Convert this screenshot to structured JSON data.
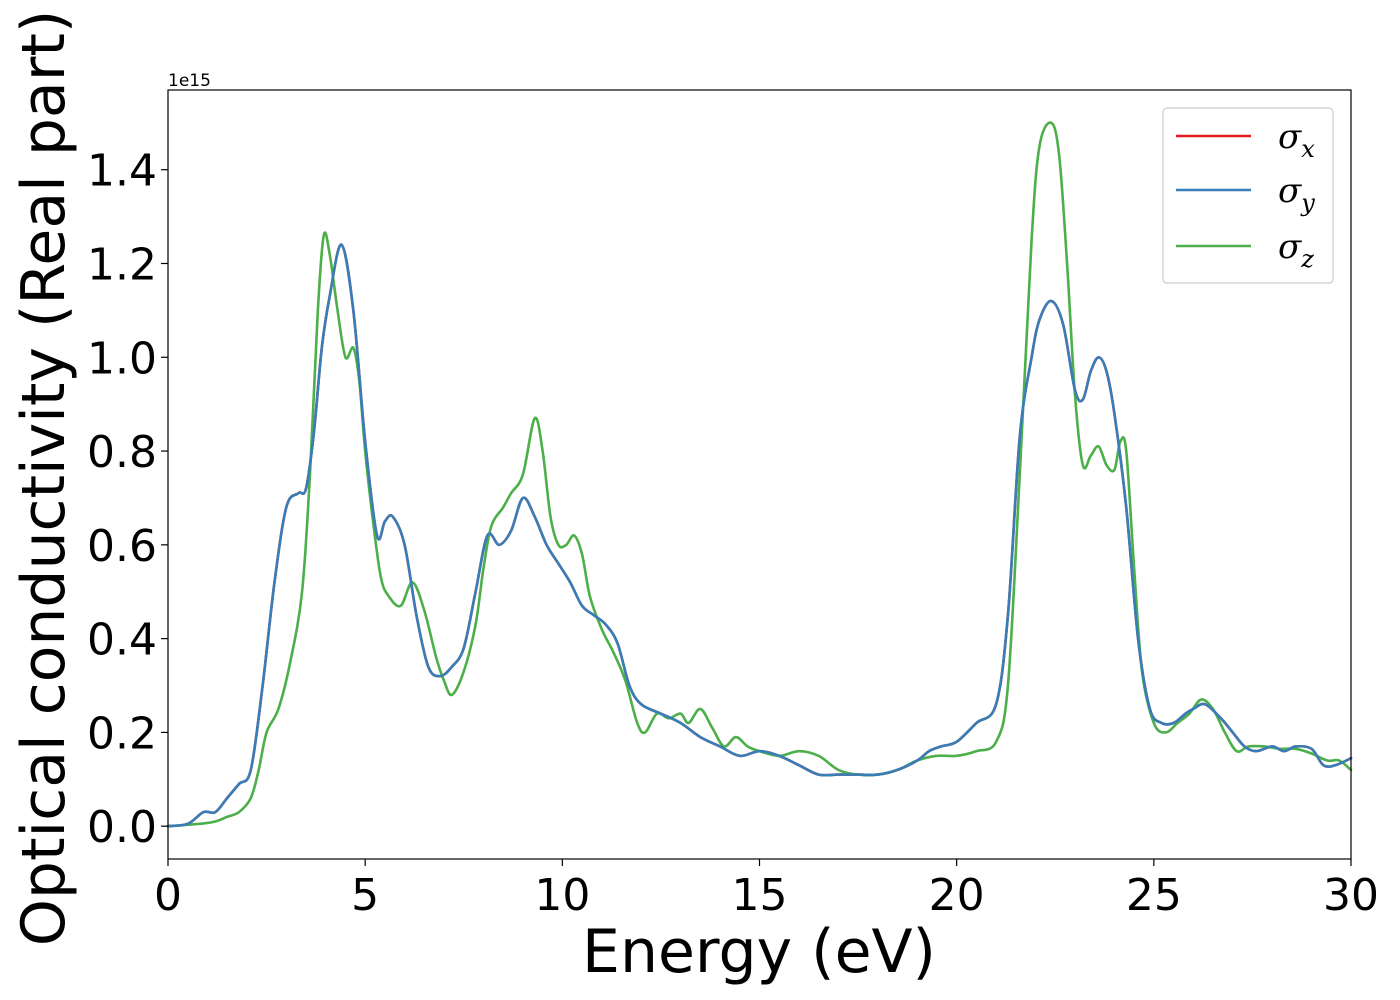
{
  "chart_data": {
    "type": "line",
    "title": "",
    "xlabel": "Energy (eV)",
    "ylabel": "Optical conductivity (Real part)",
    "y_offset_label": "1e15",
    "xlim": [
      0,
      30
    ],
    "ylim": [
      -0.07,
      1.57
    ],
    "x_ticks": [
      0,
      5,
      10,
      15,
      20,
      25,
      30
    ],
    "x_tick_labels": [
      "0",
      "5",
      "10",
      "15",
      "20",
      "25",
      "30"
    ],
    "y_ticks": [
      0.0,
      0.2,
      0.4,
      0.6,
      0.8,
      1.0,
      1.2,
      1.4
    ],
    "y_tick_labels": [
      "0.0",
      "0.2",
      "0.4",
      "0.6",
      "0.8",
      "1.0",
      "1.2",
      "1.4"
    ],
    "grid": false,
    "legend_position": "top-right",
    "series": [
      {
        "name": "σx",
        "symbol": "σ",
        "subscript": "x",
        "color": "#e41a1c",
        "x": [
          0,
          0.5,
          0.9,
          1.2,
          1.5,
          1.8,
          2.1,
          2.4,
          2.7,
          3.0,
          3.3,
          3.5,
          3.7,
          3.9,
          4.1,
          4.4,
          4.7,
          5.0,
          5.3,
          5.5,
          5.7,
          6.0,
          6.3,
          6.6,
          6.9,
          7.2,
          7.5,
          7.8,
          8.1,
          8.4,
          8.7,
          9.0,
          9.3,
          9.6,
          9.9,
          10.2,
          10.5,
          10.8,
          11.1,
          11.4,
          11.7,
          12.0,
          12.5,
          13.0,
          13.5,
          14.0,
          14.5,
          15.0,
          15.5,
          16.0,
          16.5,
          17.0,
          17.5,
          18.0,
          18.5,
          19.0,
          19.3,
          19.6,
          20.0,
          20.5,
          21.0,
          21.3,
          21.6,
          21.9,
          22.1,
          22.4,
          22.7,
          23.0,
          23.2,
          23.4,
          23.6,
          23.8,
          24.0,
          24.3,
          24.6,
          24.9,
          25.2,
          25.5,
          25.8,
          26.0,
          26.3,
          26.7,
          27.0,
          27.3,
          27.6,
          28.0,
          28.3,
          28.6,
          29.0,
          29.3,
          29.6,
          30.0
        ],
        "y": [
          0.0,
          0.005,
          0.03,
          0.03,
          0.06,
          0.09,
          0.12,
          0.3,
          0.52,
          0.68,
          0.71,
          0.72,
          0.84,
          1.02,
          1.13,
          1.24,
          1.1,
          0.82,
          0.62,
          0.65,
          0.66,
          0.6,
          0.45,
          0.34,
          0.32,
          0.34,
          0.38,
          0.5,
          0.62,
          0.6,
          0.63,
          0.7,
          0.66,
          0.6,
          0.56,
          0.52,
          0.47,
          0.45,
          0.43,
          0.39,
          0.3,
          0.26,
          0.24,
          0.22,
          0.19,
          0.17,
          0.15,
          0.16,
          0.15,
          0.13,
          0.11,
          0.11,
          0.11,
          0.11,
          0.12,
          0.14,
          0.16,
          0.17,
          0.18,
          0.22,
          0.26,
          0.45,
          0.83,
          1.0,
          1.08,
          1.12,
          1.07,
          0.93,
          0.91,
          0.97,
          1.0,
          0.97,
          0.88,
          0.68,
          0.4,
          0.25,
          0.22,
          0.22,
          0.24,
          0.25,
          0.26,
          0.23,
          0.2,
          0.17,
          0.16,
          0.17,
          0.16,
          0.17,
          0.165,
          0.13,
          0.13,
          0.145
        ]
      },
      {
        "name": "σy",
        "symbol": "σ",
        "subscript": "y",
        "color": "#377eb8",
        "x": [
          0,
          0.5,
          0.9,
          1.2,
          1.5,
          1.8,
          2.1,
          2.4,
          2.7,
          3.0,
          3.3,
          3.5,
          3.7,
          3.9,
          4.1,
          4.4,
          4.7,
          5.0,
          5.3,
          5.5,
          5.7,
          6.0,
          6.3,
          6.6,
          6.9,
          7.2,
          7.5,
          7.8,
          8.1,
          8.4,
          8.7,
          9.0,
          9.3,
          9.6,
          9.9,
          10.2,
          10.5,
          10.8,
          11.1,
          11.4,
          11.7,
          12.0,
          12.5,
          13.0,
          13.5,
          14.0,
          14.5,
          15.0,
          15.5,
          16.0,
          16.5,
          17.0,
          17.5,
          18.0,
          18.5,
          19.0,
          19.3,
          19.6,
          20.0,
          20.5,
          21.0,
          21.3,
          21.6,
          21.9,
          22.1,
          22.4,
          22.7,
          23.0,
          23.2,
          23.4,
          23.6,
          23.8,
          24.0,
          24.3,
          24.6,
          24.9,
          25.2,
          25.5,
          25.8,
          26.0,
          26.3,
          26.7,
          27.0,
          27.3,
          27.6,
          28.0,
          28.3,
          28.6,
          29.0,
          29.3,
          29.6,
          30.0
        ],
        "y": [
          0.0,
          0.005,
          0.03,
          0.03,
          0.06,
          0.09,
          0.12,
          0.3,
          0.52,
          0.68,
          0.71,
          0.72,
          0.84,
          1.02,
          1.13,
          1.24,
          1.1,
          0.82,
          0.62,
          0.65,
          0.66,
          0.6,
          0.45,
          0.34,
          0.32,
          0.34,
          0.38,
          0.5,
          0.62,
          0.6,
          0.63,
          0.7,
          0.66,
          0.6,
          0.56,
          0.52,
          0.47,
          0.45,
          0.43,
          0.39,
          0.3,
          0.26,
          0.24,
          0.22,
          0.19,
          0.17,
          0.15,
          0.16,
          0.15,
          0.13,
          0.11,
          0.11,
          0.11,
          0.11,
          0.12,
          0.14,
          0.16,
          0.17,
          0.18,
          0.22,
          0.26,
          0.45,
          0.83,
          1.0,
          1.08,
          1.12,
          1.07,
          0.93,
          0.91,
          0.97,
          1.0,
          0.97,
          0.88,
          0.68,
          0.4,
          0.25,
          0.22,
          0.22,
          0.24,
          0.25,
          0.26,
          0.23,
          0.2,
          0.17,
          0.16,
          0.17,
          0.16,
          0.17,
          0.165,
          0.13,
          0.13,
          0.145
        ]
      },
      {
        "name": "σz",
        "symbol": "σ",
        "subscript": "z",
        "color": "#4daf4a",
        "x": [
          0,
          0.8,
          1.2,
          1.5,
          1.8,
          2.1,
          2.3,
          2.5,
          2.8,
          3.1,
          3.4,
          3.6,
          3.8,
          3.95,
          4.1,
          4.3,
          4.5,
          4.7,
          4.85,
          5.0,
          5.2,
          5.4,
          5.6,
          5.9,
          6.2,
          6.5,
          6.8,
          7.0,
          7.2,
          7.5,
          7.8,
          8.0,
          8.2,
          8.5,
          8.7,
          9.0,
          9.3,
          9.5,
          9.7,
          9.9,
          10.1,
          10.3,
          10.5,
          10.7,
          11.0,
          11.3,
          11.6,
          11.9,
          12.1,
          12.4,
          12.7,
          13.0,
          13.2,
          13.5,
          13.8,
          14.1,
          14.4,
          14.7,
          15.0,
          15.5,
          16.0,
          16.5,
          17.0,
          17.5,
          18.0,
          18.5,
          19.0,
          19.5,
          20.0,
          20.5,
          21.0,
          21.3,
          21.6,
          21.9,
          22.1,
          22.4,
          22.6,
          22.8,
          23.0,
          23.2,
          23.4,
          23.6,
          23.8,
          24.0,
          24.15,
          24.3,
          24.5,
          24.7,
          25.0,
          25.3,
          25.6,
          25.9,
          26.2,
          26.5,
          26.8,
          27.1,
          27.4,
          27.8,
          28.2,
          28.6,
          29.0,
          29.4,
          29.7,
          30.0
        ],
        "y": [
          0.0,
          0.005,
          0.01,
          0.02,
          0.03,
          0.06,
          0.12,
          0.2,
          0.25,
          0.35,
          0.5,
          0.75,
          1.1,
          1.26,
          1.22,
          1.1,
          1.0,
          1.02,
          0.95,
          0.8,
          0.65,
          0.53,
          0.49,
          0.47,
          0.52,
          0.46,
          0.36,
          0.31,
          0.28,
          0.33,
          0.43,
          0.55,
          0.64,
          0.68,
          0.71,
          0.75,
          0.87,
          0.8,
          0.66,
          0.6,
          0.6,
          0.62,
          0.58,
          0.49,
          0.42,
          0.37,
          0.31,
          0.22,
          0.2,
          0.24,
          0.23,
          0.24,
          0.22,
          0.25,
          0.21,
          0.17,
          0.19,
          0.17,
          0.16,
          0.15,
          0.16,
          0.15,
          0.12,
          0.11,
          0.11,
          0.12,
          0.14,
          0.15,
          0.15,
          0.16,
          0.18,
          0.3,
          0.75,
          1.25,
          1.45,
          1.5,
          1.43,
          1.2,
          0.92,
          0.77,
          0.79,
          0.81,
          0.77,
          0.76,
          0.82,
          0.8,
          0.55,
          0.33,
          0.22,
          0.2,
          0.22,
          0.24,
          0.27,
          0.25,
          0.2,
          0.16,
          0.17,
          0.17,
          0.165,
          0.165,
          0.155,
          0.14,
          0.14,
          0.12
        ]
      }
    ]
  }
}
